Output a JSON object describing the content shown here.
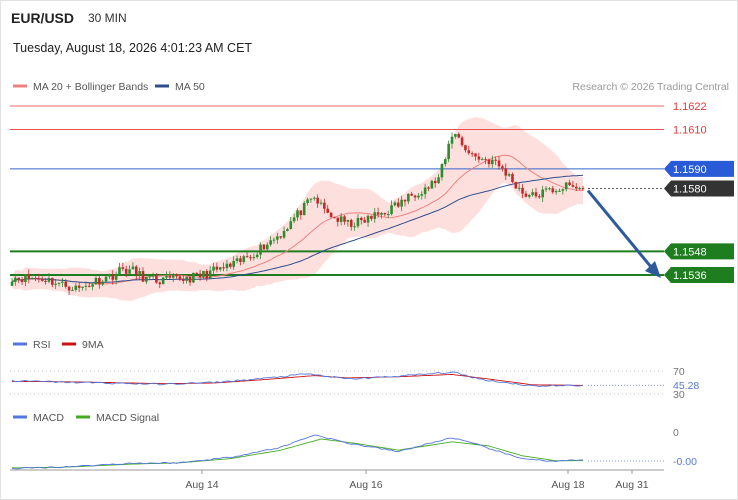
{
  "header": {
    "symbol": "EUR/USD",
    "timeframe": "30 MIN",
    "datetime": "Tuesday, August 18, 2026 4:01:23 AM CET",
    "copyright": "Research © 2026 Trading Central"
  },
  "legend": {
    "ma20_label": "MA 20 + Bollinger Bands",
    "ma50_label": "MA 50",
    "rsi_label": "RSI",
    "rsi_ma_label": "9MA",
    "macd_label": "MACD",
    "macd_signal_label": "MACD Signal"
  },
  "colors": {
    "ma20": "#f08080",
    "ma50": "#2e4d8c",
    "band_fill": "#fde0de",
    "candle_up": "#2e8b2e",
    "candle_down": "#c62828",
    "resistance": "#e53935",
    "pivot": "#3366cc",
    "support": "#1e7d1e",
    "last_price": "#333333",
    "arrow": "#2e5a9c",
    "rsi": "#5577dd",
    "rsi_ma": "#cc1111",
    "macd": "#5577dd",
    "macd_signal": "#44aa22"
  },
  "chart_data": {
    "type": "candlestick",
    "y_range": [
      1.5,
      1.1632
    ],
    "x_ticks": [
      "Aug 14",
      "Aug 16",
      "Aug 18",
      "Aug 31"
    ],
    "levels": [
      {
        "value": 1.1622,
        "label": "1.1622",
        "kind": "resistance"
      },
      {
        "value": 1.161,
        "label": "1.1610",
        "kind": "resistance"
      },
      {
        "value": 1.159,
        "label": "1.1590",
        "kind": "pivot"
      },
      {
        "value": 1.158,
        "label": "1.1580",
        "kind": "last"
      },
      {
        "value": 1.1548,
        "label": "1.1548",
        "kind": "support"
      },
      {
        "value": 1.1536,
        "label": "1.1536",
        "kind": "support"
      }
    ],
    "projection": {
      "from": 1.158,
      "to": 1.1536
    },
    "price_keyframes": [
      [
        0,
        1.1535
      ],
      [
        10,
        1.1534
      ],
      [
        15,
        1.1531
      ],
      [
        20,
        1.1529
      ],
      [
        25,
        1.1533
      ],
      [
        30,
        1.1536
      ],
      [
        33,
        1.1539
      ],
      [
        36,
        1.1538
      ],
      [
        40,
        1.1534
      ],
      [
        44,
        1.1533
      ],
      [
        50,
        1.1534
      ],
      [
        55,
        1.1535
      ],
      [
        60,
        1.1538
      ],
      [
        66,
        1.1541
      ],
      [
        70,
        1.1545
      ],
      [
        75,
        1.1551
      ],
      [
        80,
        1.1557
      ],
      [
        84,
        1.1565
      ],
      [
        88,
        1.1572
      ],
      [
        90,
        1.1575
      ],
      [
        93,
        1.1569
      ],
      [
        96,
        1.1565
      ],
      [
        100,
        1.1562
      ],
      [
        104,
        1.1563
      ],
      [
        108,
        1.1566
      ],
      [
        112,
        1.1569
      ],
      [
        116,
        1.1573
      ],
      [
        120,
        1.1578
      ],
      [
        124,
        1.1581
      ],
      [
        127,
        1.1585
      ],
      [
        129,
        1.1595
      ],
      [
        131,
        1.1608
      ],
      [
        133,
        1.1606
      ],
      [
        136,
        1.1598
      ],
      [
        140,
        1.1595
      ],
      [
        143,
        1.1594
      ],
      [
        146,
        1.159
      ],
      [
        149,
        1.1584
      ],
      [
        152,
        1.1578
      ],
      [
        155,
        1.1576
      ],
      [
        160,
        1.1579
      ],
      [
        165,
        1.1581
      ],
      [
        170,
        1.158
      ]
    ],
    "rsi": {
      "levels": [
        70,
        30
      ],
      "last_value": "45.28",
      "tick_labels": [
        "70",
        "30"
      ],
      "keyframes": [
        [
          0,
          53
        ],
        [
          20,
          50
        ],
        [
          45,
          47
        ],
        [
          60,
          50
        ],
        [
          75,
          57
        ],
        [
          88,
          65
        ],
        [
          100,
          56
        ],
        [
          115,
          61
        ],
        [
          131,
          68
        ],
        [
          140,
          55
        ],
        [
          155,
          44
        ],
        [
          170,
          45
        ]
      ],
      "ma_keyframes": [
        [
          0,
          52
        ],
        [
          20,
          51
        ],
        [
          45,
          48
        ],
        [
          60,
          49
        ],
        [
          75,
          55
        ],
        [
          90,
          62
        ],
        [
          100,
          58
        ],
        [
          115,
          60
        ],
        [
          131,
          64
        ],
        [
          142,
          56
        ],
        [
          155,
          46
        ],
        [
          170,
          45
        ]
      ]
    },
    "macd": {
      "zero_label": "0",
      "last_value": "-0.00",
      "keyframes": [
        [
          0,
          -0.3
        ],
        [
          15,
          -0.25
        ],
        [
          35,
          -0.12
        ],
        [
          50,
          -0.1
        ],
        [
          65,
          0.1
        ],
        [
          80,
          0.45
        ],
        [
          90,
          0.9
        ],
        [
          100,
          0.6
        ],
        [
          115,
          0.3
        ],
        [
          131,
          0.8
        ],
        [
          140,
          0.5
        ],
        [
          150,
          0.1
        ],
        [
          160,
          -0.05
        ],
        [
          170,
          -0.01
        ]
      ],
      "signal_keyframes": [
        [
          0,
          -0.28
        ],
        [
          15,
          -0.26
        ],
        [
          35,
          -0.15
        ],
        [
          50,
          -0.1
        ],
        [
          65,
          0.05
        ],
        [
          80,
          0.35
        ],
        [
          92,
          0.75
        ],
        [
          102,
          0.6
        ],
        [
          115,
          0.35
        ],
        [
          131,
          0.65
        ],
        [
          142,
          0.5
        ],
        [
          152,
          0.15
        ],
        [
          162,
          -0.03
        ],
        [
          170,
          -0.02
        ]
      ]
    }
  }
}
